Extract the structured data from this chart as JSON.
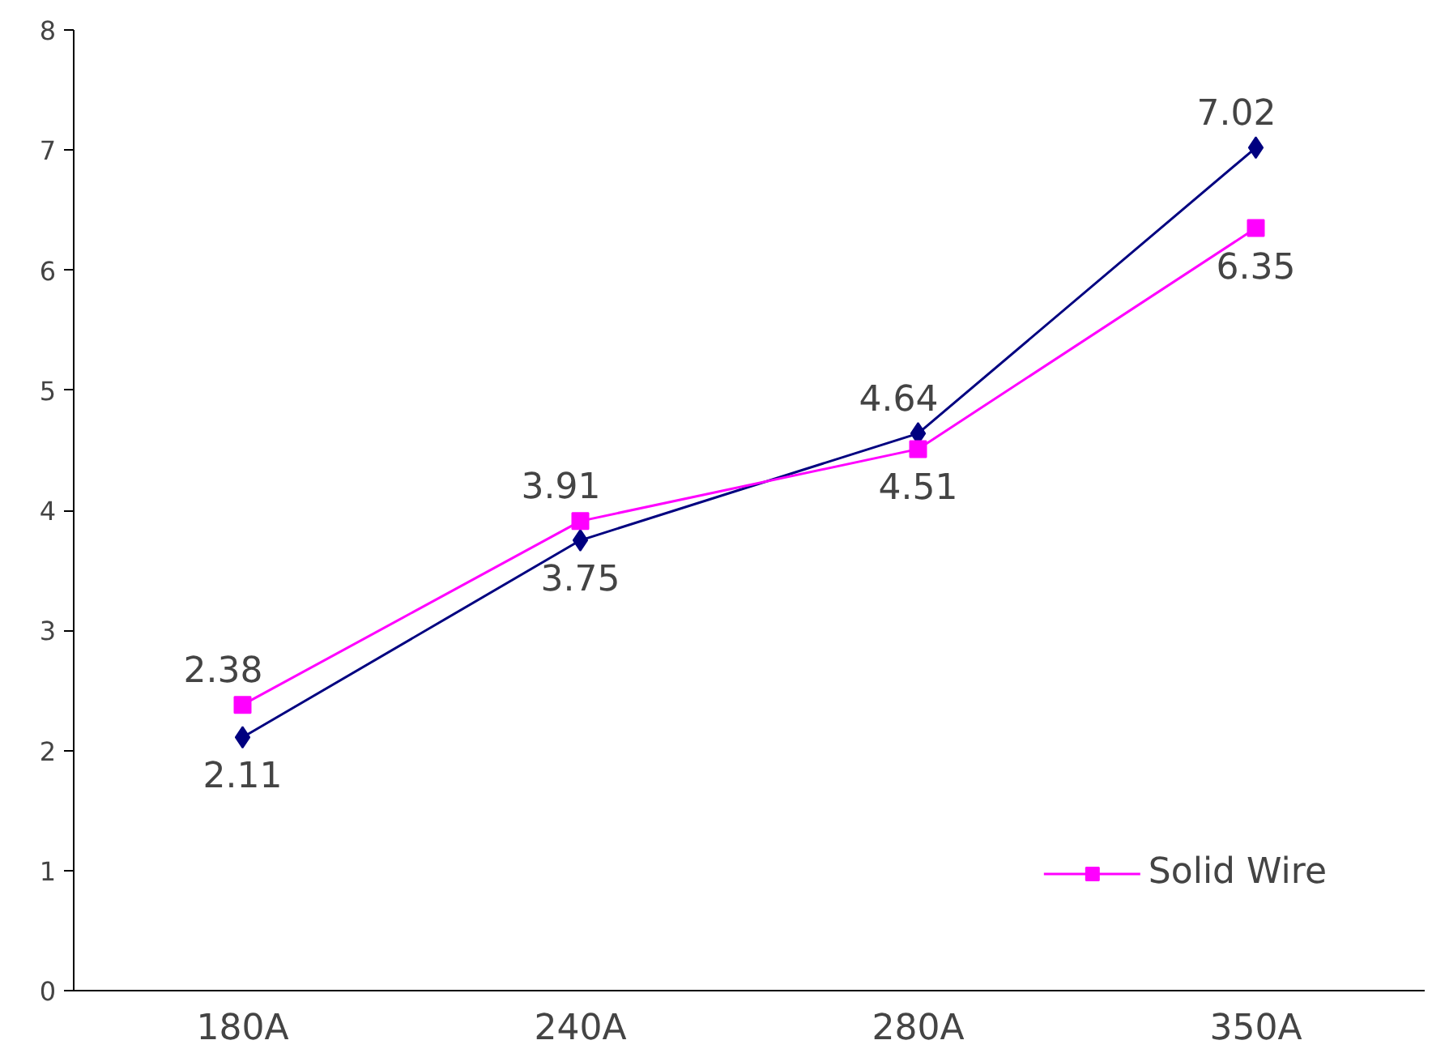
{
  "chart_data": {
    "type": "line",
    "categories": [
      "180A",
      "240A",
      "280A",
      "350A"
    ],
    "series": [
      {
        "color": "#000080",
        "marker": "diamond",
        "values": [
          2.11,
          3.75,
          4.64,
          7.02
        ]
      },
      {
        "name": "Solid Wire",
        "color": "#ff00ff",
        "marker": "square",
        "values": [
          2.38,
          3.91,
          4.51,
          6.35
        ]
      }
    ],
    "ylim": [
      0,
      8
    ],
    "yticks": [
      0,
      1,
      2,
      3,
      4,
      5,
      6,
      7,
      8
    ],
    "data_labels": true,
    "grid": false,
    "legend": "bottom right"
  }
}
